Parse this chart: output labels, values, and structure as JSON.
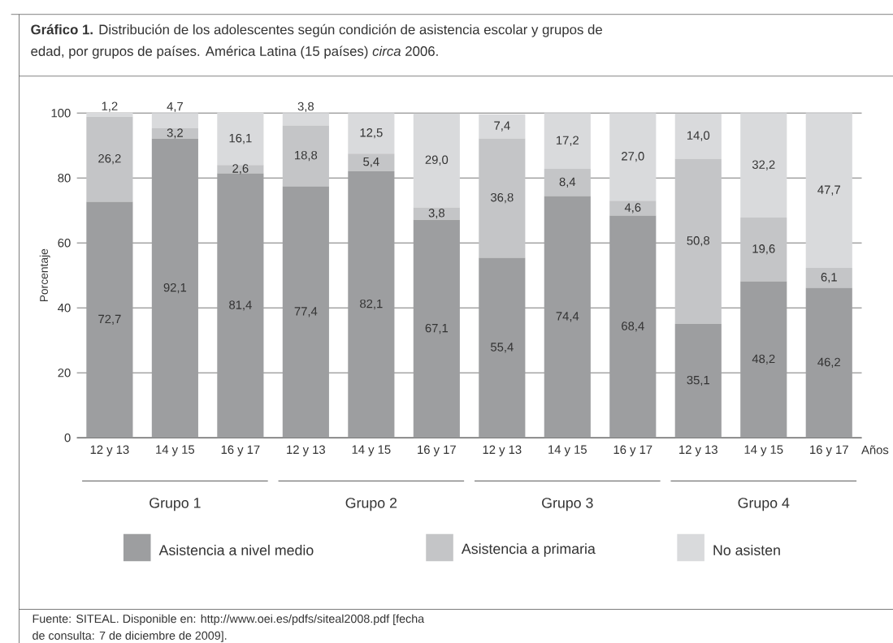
{
  "chart_data": {
    "type": "bar",
    "stacked": true,
    "title": "**Gráfico 1.** Distribución de los adolescentes según condición de asistencia escolar y grupos de edad, por grupos de países. América Latina (15 países) *circa* 2006.",
    "ylabel": "Porcentaje",
    "xlabel": "Años",
    "categories": [
      "12 y 13",
      "14 y 15",
      "16 y 17",
      "12 y 13",
      "14 y 15",
      "16 y 17",
      "12 y 13",
      "14 y 15",
      "16 y 17",
      "12 y 13",
      "14 y 15",
      "16 y 17"
    ],
    "series": [
      {
        "name": "Asistencia a nivel medio",
        "color": "#9d9ea0",
        "values": [
          72.7,
          92.1,
          81.4,
          77.4,
          82.1,
          67.1,
          55.4,
          74.4,
          68.4,
          35.1,
          48.2,
          46.2
        ],
        "value_labels": [
          "72,7",
          "92,1",
          "81,4",
          "77,4",
          "82,1",
          "67,1",
          "55,4",
          "74,4",
          "68,4",
          "35,1",
          "48,2",
          "46,2"
        ]
      },
      {
        "name": "Asistencia a primaria",
        "color": "#c4c5c7",
        "values": [
          26.2,
          3.2,
          2.6,
          18.8,
          5.4,
          3.8,
          36.8,
          8.4,
          4.6,
          50.8,
          19.6,
          6.1
        ],
        "value_labels": [
          "26,2",
          "3,2",
          "2,6",
          "18,8",
          "5,4",
          "3,8",
          "36,8",
          "8,4",
          "4,6",
          "50,8",
          "19,6",
          "6,1"
        ]
      },
      {
        "name": "No asisten",
        "color": "#d9dadc",
        "values": [
          1.2,
          4.7,
          16.1,
          3.8,
          12.5,
          29.0,
          7.4,
          17.2,
          27.0,
          14.0,
          32.2,
          47.7
        ],
        "value_labels": [
          "1,2",
          "4,7",
          "16,1",
          "3,8",
          "12,5",
          "29,0",
          "7,4",
          "17,2",
          "27,0",
          "14,0",
          "32,2",
          "47,7"
        ]
      }
    ],
    "ylim": [
      0,
      100
    ],
    "yticks": [
      0,
      20,
      40,
      60,
      80,
      100
    ],
    "grid": "y",
    "legend": "bottom",
    "annotations": [
      "Grupo 1",
      "Grupo 2",
      "Grupo 3",
      "Grupo 4",
      "Fuente: SITEAL. Disponible en: http://www.oei.es/pdfs/siteal2008.pdf [fecha de consulta: 7 de diciembre de 2009]."
    ]
  }
}
